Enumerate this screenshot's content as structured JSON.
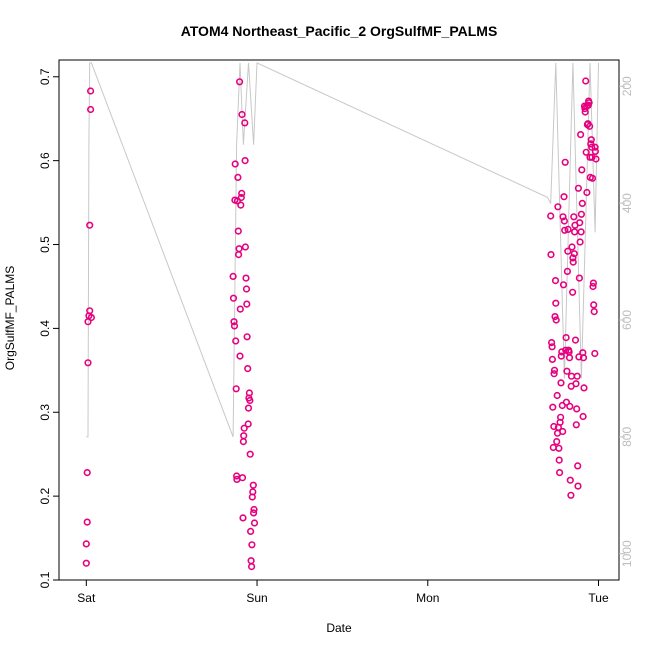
{
  "chart_data": {
    "type": "scatter",
    "title": "ATOM4 Northeast_Pacific_2 OrgSulfMF_PALMS",
    "xlabel": "Date",
    "ylabel": "OrgSulfMF_PALMS",
    "x_ticks": [
      {
        "label": "Sat",
        "value": 0
      },
      {
        "label": "Sun",
        "value": 1
      },
      {
        "label": "Mon",
        "value": 2
      },
      {
        "label": "Tue",
        "value": 3
      }
    ],
    "xlim": [
      -0.16,
      3.12
    ],
    "ylim": [
      0.1,
      0.72
    ],
    "y_ticks": [
      0.1,
      0.2,
      0.3,
      0.4,
      0.5,
      0.6,
      0.7
    ],
    "y2_ticks": [
      200,
      400,
      600,
      800,
      1000
    ],
    "y2lim": [
      1045,
      155
    ],
    "grid": false,
    "colors": {
      "points": "#e6007e",
      "secondary_line": "#c8c8c8",
      "secondary_axis": "#bdbdbd",
      "axis": "#000000"
    },
    "series": [
      {
        "x": [
          0.0,
          0.0,
          0.005,
          0.005,
          0.01,
          0.01,
          0.015,
          0.02,
          0.02,
          0.025,
          0.025,
          0.03
        ],
        "y": [
          0.12,
          0.143,
          0.169,
          0.228,
          0.359,
          0.408,
          0.415,
          0.421,
          0.523,
          0.661,
          0.683,
          0.413
        ]
      },
      {
        "x": [
          0.86,
          0.862,
          0.865,
          0.868,
          0.87,
          0.872,
          0.875,
          0.878,
          0.88,
          0.882,
          0.885,
          0.888,
          0.89,
          0.892,
          0.895,
          0.898,
          0.9,
          0.902,
          0.905,
          0.908,
          0.91,
          0.912,
          0.915,
          0.918,
          0.92,
          0.922,
          0.925,
          0.928,
          0.93,
          0.932,
          0.935,
          0.938,
          0.94,
          0.942,
          0.945,
          0.948,
          0.95,
          0.952,
          0.955,
          0.958,
          0.96,
          0.962,
          0.965,
          0.968,
          0.97,
          0.972,
          0.975,
          0.978,
          0.98,
          0.982,
          0.985
        ],
        "y": [
          0.462,
          0.436,
          0.408,
          0.403,
          0.553,
          0.596,
          0.385,
          0.328,
          0.224,
          0.22,
          0.552,
          0.58,
          0.516,
          0.488,
          0.495,
          0.694,
          0.367,
          0.423,
          0.547,
          0.556,
          0.561,
          0.655,
          0.222,
          0.174,
          0.265,
          0.272,
          0.281,
          0.645,
          0.6,
          0.497,
          0.46,
          0.447,
          0.429,
          0.39,
          0.352,
          0.286,
          0.305,
          0.317,
          0.323,
          0.314,
          0.25,
          0.158,
          0.123,
          0.116,
          0.142,
          0.199,
          0.205,
          0.213,
          0.18,
          0.184,
          0.168
        ]
      },
      {
        "x": [
          2.72,
          2.722,
          2.725,
          2.728,
          2.73,
          2.732,
          2.735,
          2.738,
          2.74,
          2.742,
          2.745,
          2.748,
          2.75,
          2.752,
          2.755,
          2.758,
          2.76,
          2.762,
          2.765,
          2.768,
          2.77,
          2.772,
          2.775,
          2.778,
          2.78,
          2.782,
          2.785,
          2.788,
          2.79,
          2.792,
          2.795,
          2.798,
          2.8,
          2.802,
          2.805,
          2.808,
          2.81,
          2.812,
          2.815,
          2.818,
          2.82,
          2.822,
          2.825,
          2.828,
          2.83,
          2.832,
          2.835,
          2.838,
          2.84,
          2.842,
          2.845,
          2.848,
          2.85,
          2.852,
          2.855,
          2.858,
          2.86,
          2.862,
          2.865,
          2.868,
          2.87,
          2.872,
          2.875,
          2.878,
          2.88,
          2.882,
          2.885,
          2.888,
          2.89,
          2.892,
          2.895,
          2.898,
          2.9,
          2.902,
          2.905,
          2.908,
          2.91,
          2.912,
          2.915,
          2.918,
          2.92,
          2.922,
          2.925,
          2.928,
          2.93,
          2.932,
          2.935,
          2.938,
          2.94,
          2.942,
          2.945,
          2.948,
          2.95,
          2.952,
          2.955,
          2.958,
          2.96,
          2.962,
          2.965,
          2.968,
          2.97,
          2.972,
          2.975,
          2.978,
          2.98,
          2.982,
          2.985
        ],
        "y": [
          0.534,
          0.488,
          0.383,
          0.378,
          0.363,
          0.306,
          0.258,
          0.283,
          0.346,
          0.35,
          0.414,
          0.457,
          0.43,
          0.41,
          0.265,
          0.32,
          0.275,
          0.545,
          0.282,
          0.257,
          0.243,
          0.228,
          0.288,
          0.294,
          0.335,
          0.367,
          0.372,
          0.308,
          0.277,
          0.533,
          0.452,
          0.557,
          0.528,
          0.517,
          0.598,
          0.374,
          0.389,
          0.312,
          0.349,
          0.468,
          0.492,
          0.518,
          0.374,
          0.372,
          0.365,
          0.307,
          0.219,
          0.201,
          0.331,
          0.343,
          0.497,
          0.443,
          0.484,
          0.479,
          0.533,
          0.489,
          0.515,
          0.523,
          0.386,
          0.334,
          0.285,
          0.304,
          0.343,
          0.236,
          0.212,
          0.567,
          0.366,
          0.46,
          0.526,
          0.503,
          0.631,
          0.515,
          0.536,
          0.589,
          0.549,
          0.371,
          0.295,
          0.365,
          0.329,
          0.665,
          0.662,
          0.658,
          0.695,
          0.61,
          0.665,
          0.562,
          0.643,
          0.644,
          0.666,
          0.671,
          0.669,
          0.641,
          0.604,
          0.58,
          0.62,
          0.625,
          0.616,
          0.604,
          0.579,
          0.45,
          0.454,
          0.428,
          0.42,
          0.37,
          0.616,
          0.611,
          0.602
        ]
      }
    ],
    "secondary_series": {
      "x": [
        0.0,
        0.01,
        0.015,
        0.02,
        0.03,
        0.86,
        0.88,
        0.9,
        0.92,
        0.95,
        0.98,
        1.0,
        2.7,
        2.72,
        2.75,
        2.8,
        2.85,
        2.9,
        2.95,
        2.98,
        3.0
      ],
      "y": [
        800,
        800,
        300,
        160,
        160,
        800,
        300,
        160,
        300,
        160,
        300,
        160,
        390,
        400,
        160,
        700,
        160,
        700,
        160,
        450,
        160
      ]
    }
  }
}
